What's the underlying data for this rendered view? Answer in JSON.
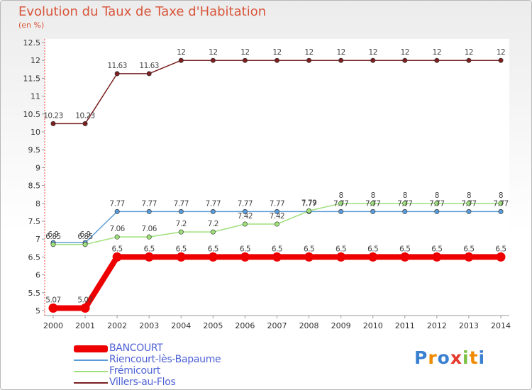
{
  "chart_data": {
    "type": "line",
    "title": "Evolution du Taux de Taxe d'Habitation",
    "ylabel": "(en %)",
    "xlabel": "",
    "ylim": [
      5,
      12.5
    ],
    "yticks": [
      "5",
      "5.5",
      "6",
      "6.5",
      "7",
      "7.5",
      "8",
      "8.5",
      "9",
      "9.5",
      "10",
      "10.5",
      "11",
      "11.5",
      "12",
      "12.5"
    ],
    "categories": [
      "2000",
      "2001",
      "2002",
      "2003",
      "2004",
      "2005",
      "2006",
      "2007",
      "2008",
      "2009",
      "2010",
      "2011",
      "2012",
      "2013",
      "2014"
    ],
    "series": [
      {
        "name": "Villers-au-Flos",
        "color": "#7a2020",
        "values": [
          10.23,
          10.23,
          11.63,
          11.63,
          12,
          12,
          12,
          12,
          12,
          12,
          12,
          12,
          12,
          12,
          12
        ]
      },
      {
        "name": "Riencourt-lès-Bapaume",
        "color": "#5b9bd5",
        "values": [
          6.9,
          6.9,
          7.77,
          7.77,
          7.77,
          7.77,
          7.77,
          7.77,
          7.77,
          7.77,
          7.77,
          7.77,
          7.77,
          7.77,
          7.77
        ]
      },
      {
        "name": "Frémicourt",
        "color": "#9ee07a",
        "values": [
          6.85,
          6.85,
          7.06,
          7.06,
          7.2,
          7.2,
          7.42,
          7.42,
          7.79,
          8,
          8,
          8,
          8,
          8,
          8
        ]
      },
      {
        "name": "BANCOURT",
        "color": "#ee0000",
        "values": [
          5.07,
          5.07,
          6.5,
          6.5,
          6.5,
          6.5,
          6.5,
          6.5,
          6.5,
          6.5,
          6.5,
          6.5,
          6.5,
          6.5,
          6.5
        ]
      }
    ],
    "legend": [
      "BANCOURT",
      "Riencourt-lès-Bapaume",
      "Frémicourt",
      "Villers-au-Flos"
    ]
  },
  "brand": "Proxiti"
}
